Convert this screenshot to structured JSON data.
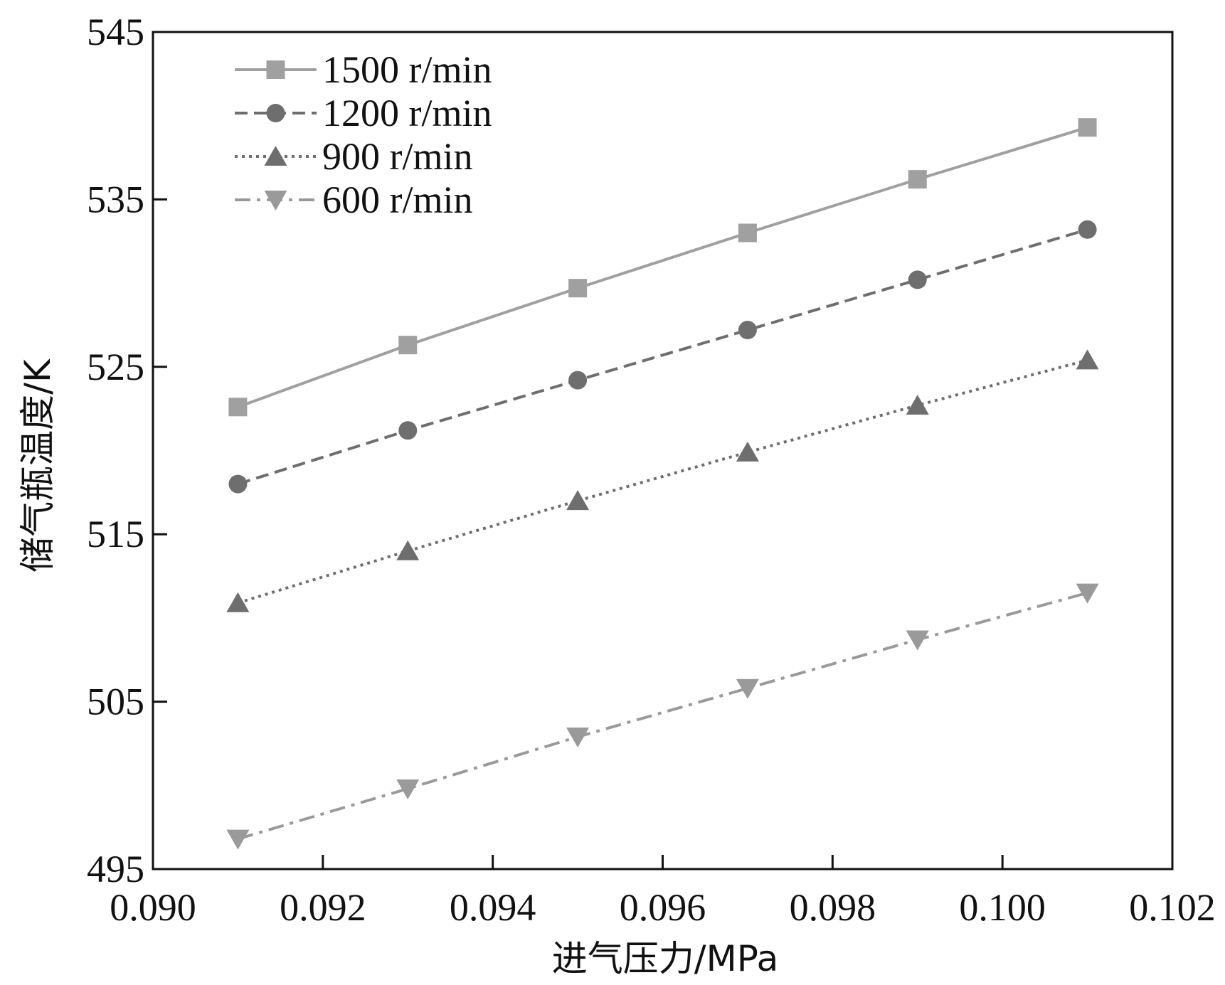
{
  "chart_data": {
    "type": "line",
    "title": "",
    "xlabel": "进气压力/MPa",
    "ylabel": "储气瓶温度/K",
    "xlim": [
      0.09,
      0.102
    ],
    "ylim": [
      495,
      545
    ],
    "xticks": [
      "0.090",
      "0.092",
      "0.094",
      "0.096",
      "0.098",
      "0.100",
      "0.102"
    ],
    "xtick_values": [
      0.09,
      0.092,
      0.094,
      0.096,
      0.098,
      0.1,
      0.102
    ],
    "yticks": [
      "495",
      "505",
      "515",
      "525",
      "535",
      "545"
    ],
    "ytick_values": [
      495,
      505,
      515,
      525,
      535,
      545
    ],
    "grid": false,
    "legend_position": "top-left",
    "x": [
      0.091,
      0.093,
      0.095,
      0.097,
      0.099,
      0.101
    ],
    "series": [
      {
        "name": "1500 r/min",
        "values": [
          522.6,
          526.3,
          529.7,
          533.0,
          536.2,
          539.3
        ],
        "color": "#a0a0a0",
        "dash": "solid",
        "marker": "square"
      },
      {
        "name": "1200 r/min",
        "values": [
          518.0,
          521.2,
          524.2,
          527.2,
          530.2,
          533.2
        ],
        "color": "#6e6e6e",
        "dash": "dashed",
        "marker": "circle"
      },
      {
        "name": "900 r/min",
        "values": [
          510.9,
          514.0,
          517.0,
          519.9,
          522.7,
          525.4
        ],
        "color": "#6e6e6e",
        "dash": "dotted",
        "marker": "triangle-up"
      },
      {
        "name": "600 r/min",
        "values": [
          496.8,
          499.8,
          502.9,
          505.8,
          508.7,
          511.5
        ],
        "color": "#9a9a9a",
        "dash": "dashdot",
        "marker": "triangle-down"
      }
    ]
  }
}
